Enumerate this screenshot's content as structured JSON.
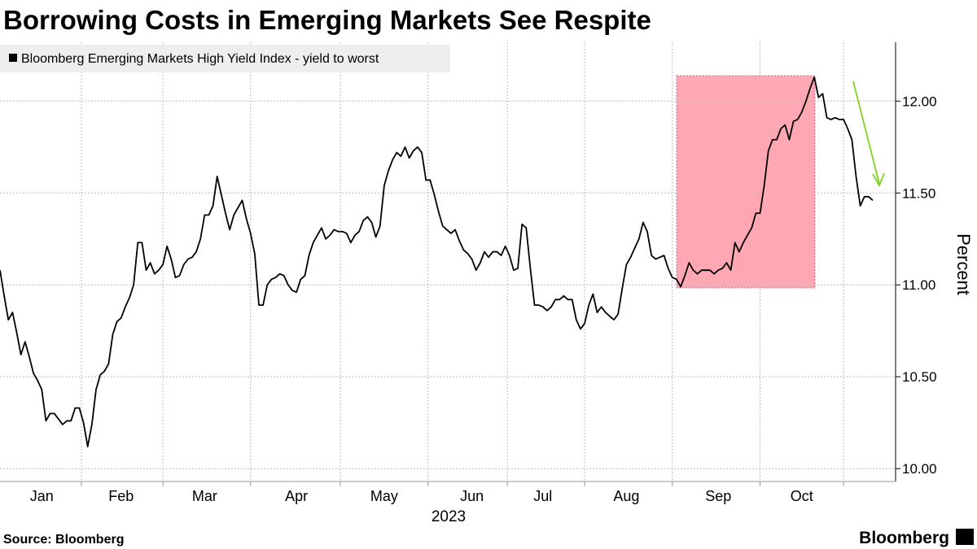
{
  "chart_data": {
    "type": "line",
    "title": "Borrowing Costs in Emerging Markets See Respite",
    "xlabel": "2023",
    "ylabel": "Percent",
    "source": "Source: Bloomberg",
    "brand": "Bloomberg",
    "grid": true,
    "legend": "upper left",
    "ylim": [
      9.93,
      12.32
    ],
    "yticks": [
      {
        "value": 10,
        "label": "10.00"
      },
      {
        "value": 10.5,
        "label": "10.50"
      },
      {
        "value": 11,
        "label": "11.00"
      },
      {
        "value": 11.5,
        "label": "11.50"
      },
      {
        "value": 12,
        "label": "12.00"
      }
    ],
    "categories": [
      null,
      null,
      null,
      null,
      null,
      null,
      null,
      null,
      null,
      null,
      "Jan",
      null,
      null,
      null,
      null,
      null,
      null,
      null,
      null,
      null,
      null,
      null,
      null,
      null,
      null,
      null,
      null,
      null,
      null,
      "Feb",
      null,
      null,
      null,
      null,
      null,
      null,
      null,
      null,
      null,
      null,
      null,
      null,
      null,
      null,
      null,
      null,
      null,
      null,
      null,
      "Mar",
      null,
      null,
      null,
      null,
      null,
      null,
      null,
      null,
      null,
      null,
      null,
      null,
      null,
      null,
      null,
      null,
      null,
      null,
      null,
      null,
      null,
      "Apr",
      null,
      null,
      null,
      null,
      null,
      null,
      null,
      null,
      null,
      null,
      null,
      null,
      null,
      null,
      null,
      null,
      null,
      null,
      null,
      null,
      "May",
      null,
      null,
      null,
      null,
      null,
      null,
      null,
      null,
      null,
      null,
      null,
      null,
      null,
      null,
      null,
      null,
      null,
      null,
      null,
      null,
      "Jun",
      null,
      null,
      null,
      null,
      null,
      null,
      null,
      null,
      null,
      null,
      null,
      null,
      null,
      null,
      null,
      null,
      "Jul",
      null,
      null,
      null,
      null,
      null,
      null,
      null,
      null,
      null,
      null,
      null,
      null,
      null,
      null,
      null,
      null,
      null,
      null,
      null,
      "Aug",
      null,
      null,
      null,
      null,
      null,
      null,
      null,
      null,
      null,
      null,
      null,
      null,
      null,
      null,
      null,
      null,
      null,
      null,
      null,
      null,
      null,
      "Sep",
      null,
      null,
      null,
      null,
      null,
      null,
      null,
      null,
      null,
      null,
      null,
      null,
      null,
      null,
      null,
      null,
      null,
      null,
      null,
      "Oct",
      null,
      null,
      null,
      null,
      null,
      null,
      null,
      null,
      null,
      null,
      null,
      null,
      null,
      null,
      null,
      null,
      null
    ],
    "series": [
      {
        "name": "Bloomberg Emerging Markets High Yield Index - yield to worst",
        "color": "#000000",
        "values": [
          11.08,
          10.94,
          10.81,
          10.85,
          10.74,
          10.62,
          10.69,
          10.61,
          10.52,
          10.48,
          10.43,
          10.26,
          10.3,
          10.3,
          10.27,
          10.24,
          10.26,
          10.26,
          10.33,
          10.33,
          10.25,
          10.12,
          10.24,
          10.43,
          10.51,
          10.53,
          10.57,
          10.73,
          10.8,
          10.82,
          10.88,
          10.93,
          11.0,
          11.23,
          11.23,
          11.08,
          11.12,
          11.06,
          11.08,
          11.11,
          11.21,
          11.14,
          11.04,
          11.05,
          11.11,
          11.14,
          11.15,
          11.18,
          11.25,
          11.38,
          11.38,
          11.43,
          11.59,
          11.49,
          11.39,
          11.3,
          11.38,
          11.42,
          11.46,
          11.36,
          11.28,
          11.17,
          10.89,
          10.89,
          11.0,
          11.03,
          11.04,
          11.06,
          11.05,
          11.0,
          10.97,
          10.96,
          11.03,
          11.05,
          11.16,
          11.23,
          11.27,
          11.31,
          11.25,
          11.27,
          11.3,
          11.29,
          11.29,
          11.28,
          11.23,
          11.27,
          11.29,
          11.35,
          11.37,
          11.34,
          11.26,
          11.32,
          11.54,
          11.62,
          11.68,
          11.72,
          11.7,
          11.75,
          11.69,
          11.73,
          11.75,
          11.72,
          11.57,
          11.57,
          11.49,
          11.4,
          11.32,
          11.3,
          11.28,
          11.3,
          11.24,
          11.19,
          11.17,
          11.14,
          11.08,
          11.12,
          11.18,
          11.15,
          11.18,
          11.18,
          11.16,
          11.21,
          11.16,
          11.08,
          11.09,
          11.33,
          11.31,
          11.09,
          10.89,
          10.89,
          10.88,
          10.86,
          10.88,
          10.92,
          10.92,
          10.94,
          10.92,
          10.92,
          10.81,
          10.76,
          10.79,
          10.89,
          10.95,
          10.85,
          10.88,
          10.85,
          10.83,
          10.81,
          10.84,
          10.98,
          11.11,
          11.15,
          11.2,
          11.25,
          11.34,
          11.29,
          11.16,
          11.14,
          11.15,
          11.16,
          11.09,
          11.04,
          11.03,
          10.99,
          11.05,
          11.12,
          11.08,
          11.06,
          11.08,
          11.08,
          11.08,
          11.06,
          11.08,
          11.09,
          11.12,
          11.08,
          11.23,
          11.18,
          11.23,
          11.27,
          11.31,
          11.39,
          11.39,
          11.54,
          11.73,
          11.79,
          11.79,
          11.85,
          11.87,
          11.79,
          11.89,
          11.9,
          11.94,
          12.0,
          12.07,
          12.13,
          12.02,
          12.04,
          11.91,
          11.9,
          11.91,
          11.9,
          11.9,
          11.85,
          11.79,
          11.59,
          11.43,
          11.48,
          11.48,
          11.46
        ]
      }
    ]
  }
}
